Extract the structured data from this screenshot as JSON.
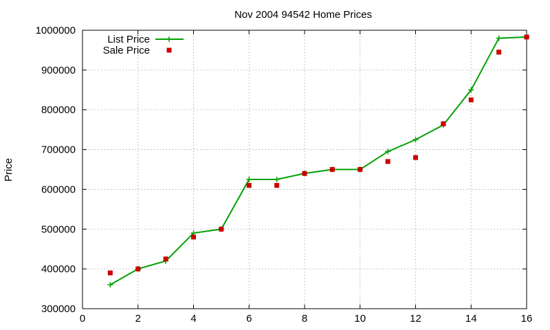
{
  "chart_data": {
    "type": "line",
    "title": "Nov 2004 94542 Home Prices",
    "xlabel": "",
    "ylabel": "Price",
    "xlim": [
      0,
      16
    ],
    "ylim": [
      300000,
      1000000
    ],
    "xticks": [
      0,
      2,
      4,
      6,
      8,
      10,
      12,
      14,
      16
    ],
    "yticks": [
      300000,
      400000,
      500000,
      600000,
      700000,
      800000,
      900000,
      1000000
    ],
    "grid": true,
    "legend_position": "top-left",
    "series": [
      {
        "name": "List Price",
        "style": "line-plus",
        "color": "#00a000",
        "x": [
          1,
          2,
          3,
          4,
          5,
          6,
          7,
          8,
          9,
          10,
          11,
          12,
          13,
          14,
          15,
          16
        ],
        "values": [
          360000,
          400000,
          420000,
          490000,
          500000,
          625000,
          625000,
          640000,
          650000,
          650000,
          695000,
          725000,
          762000,
          850000,
          980000,
          983000
        ]
      },
      {
        "name": "Sale Price",
        "style": "square",
        "color": "#cc0000",
        "x": [
          1,
          2,
          3,
          4,
          5,
          6,
          7,
          8,
          9,
          10,
          11,
          12,
          13,
          14,
          15,
          16
        ],
        "values": [
          390000,
          400000,
          425000,
          480000,
          500000,
          610000,
          610000,
          640000,
          650000,
          650000,
          670000,
          680000,
          765000,
          825000,
          945000,
          983000
        ]
      }
    ]
  }
}
